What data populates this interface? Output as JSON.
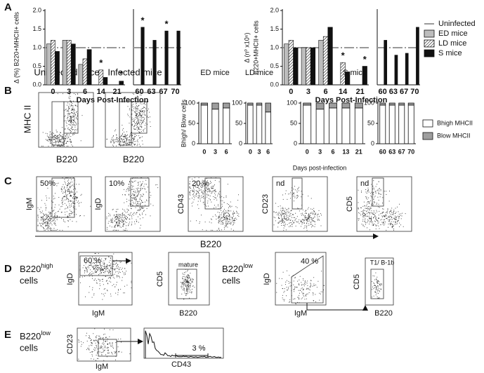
{
  "panel_labels": [
    "A",
    "B",
    "C",
    "D",
    "E"
  ],
  "chart_data": [
    {
      "type": "bar",
      "ylabel": "Δ (%) B220+MHCII+ cells",
      "xlabel": "Days Post-Infection",
      "category_groups": [
        [
          "0",
          "3",
          "6",
          "14",
          "21"
        ],
        [
          "60",
          "63",
          "67",
          "70"
        ]
      ],
      "ylim": [
        0,
        2
      ],
      "yticks": [
        {
          "value": 0,
          "label": "0.0"
        },
        {
          "value": 0.5,
          "label": "0.5"
        },
        {
          "value": 1,
          "label": "1.0"
        },
        {
          "value": 1.5,
          "label": "1.5"
        },
        {
          "value": 2,
          "label": "2.0"
        }
      ],
      "significance_mark": "*",
      "reference_lines": [
        {
          "value": 1,
          "color": "#999999"
        }
      ],
      "series": [
        {
          "color": "#bdbdbd",
          "values": [
            1.1,
            1.2,
            0.55,
            null,
            null,
            null,
            null,
            null,
            null
          ]
        },
        {
          "color": "#ffffff",
          "pattern": "hatch",
          "values": [
            1.2,
            1.2,
            0.7,
            0.4,
            null,
            null,
            null,
            null,
            null
          ],
          "significant": [
            false,
            false,
            false,
            true,
            false,
            false,
            false,
            false,
            false
          ]
        },
        {
          "color": "#111111",
          "values": [
            0.9,
            1.1,
            0.95,
            0.2,
            0.1,
            1.55,
            1.2,
            1.45,
            1.45
          ],
          "significant": [
            false,
            false,
            false,
            false,
            true,
            true,
            false,
            true,
            false
          ]
        }
      ]
    },
    {
      "type": "bar",
      "ylabel": [
        "Δ (nº x10⁶)",
        "B220+MHCII+ cells"
      ],
      "xlabel": "Days Post-Infection",
      "category_groups": [
        [
          "0",
          "3",
          "6",
          "14",
          "21"
        ],
        [
          "60",
          "63",
          "67",
          "70"
        ]
      ],
      "ylim": [
        0,
        2
      ],
      "yticks": [
        {
          "value": 0,
          "label": "0.0"
        },
        {
          "value": 0.5,
          "label": "0.5"
        },
        {
          "value": 1,
          "label": "1.0"
        },
        {
          "value": 1.5,
          "label": "1.5"
        },
        {
          "value": 2,
          "label": "2.0"
        }
      ],
      "significance_mark": "*",
      "legend": "right",
      "reference_lines": [
        {
          "name": "Uninfected",
          "value": 1,
          "color": "#999999"
        }
      ],
      "series": [
        {
          "name": "ED mice",
          "color": "#bdbdbd",
          "values": [
            1.1,
            1.0,
            1.2,
            null,
            null,
            null,
            null,
            null,
            null
          ]
        },
        {
          "name": "LD mice",
          "color": "#ffffff",
          "pattern": "hatch",
          "values": [
            1.2,
            1.0,
            1.3,
            0.6,
            null,
            null,
            null,
            null,
            null
          ],
          "significant": [
            false,
            false,
            false,
            true,
            false,
            false,
            false,
            false,
            false
          ]
        },
        {
          "name": "S mice",
          "color": "#111111",
          "values": [
            1.0,
            1.0,
            1.55,
            0.35,
            0.5,
            1.2,
            0.8,
            0.85,
            1.55
          ],
          "significant": [
            false,
            false,
            false,
            false,
            true,
            false,
            false,
            false,
            false
          ]
        }
      ]
    },
    {
      "type": "stacked_bar",
      "title": "ED mice",
      "ylabel": "Bhigh/ Blow cells",
      "category_groups": [
        [
          "0",
          "3",
          "6"
        ]
      ],
      "ylim": [
        0,
        100
      ],
      "yticks": [
        0,
        50,
        100
      ],
      "series": [
        {
          "color": "#ffffff",
          "values": [
            95,
            85,
            88
          ]
        },
        {
          "color": "#9e9e9e",
          "values": [
            5,
            15,
            12
          ]
        }
      ]
    },
    {
      "type": "stacked_bar",
      "title": "LD mice",
      "category_groups": [
        [
          "0",
          "3",
          "6"
        ]
      ],
      "ylim": [
        0,
        100
      ],
      "yticks": [
        0,
        50,
        100
      ],
      "series": [
        {
          "color": "#ffffff",
          "values": [
            95,
            95,
            78
          ]
        },
        {
          "color": "#9e9e9e",
          "values": [
            5,
            5,
            22
          ]
        }
      ]
    },
    {
      "type": "stacked_bar",
      "title": "S mice",
      "category_groups": [
        [
          "0",
          "3",
          "6",
          "13",
          "21"
        ]
      ],
      "ylim": [
        0,
        100
      ],
      "yticks": [
        0,
        50,
        100
      ],
      "series": [
        {
          "color": "#ffffff",
          "values": [
            95,
            85,
            88,
            88,
            88
          ]
        },
        {
          "color": "#9e9e9e",
          "values": [
            5,
            15,
            12,
            12,
            12
          ]
        }
      ]
    },
    {
      "type": "stacked_bar",
      "legend": "right",
      "category_groups": [
        [
          "60",
          "63",
          "67",
          "70"
        ]
      ],
      "ylim": [
        0,
        100
      ],
      "yticks": [
        0,
        50,
        100
      ],
      "series": [
        {
          "name": "Bhigh MHCII",
          "color": "#ffffff",
          "values": [
            95,
            95,
            95,
            95
          ]
        },
        {
          "name": "Blow MHCII",
          "color": "#9e9e9e",
          "values": [
            5,
            5,
            5,
            5
          ]
        }
      ]
    }
  ],
  "panel_b": {
    "titles": [
      "Uninfected mice",
      "Infected mice"
    ],
    "y_label": "MHC II",
    "x_labels": [
      "B220",
      "B220"
    ],
    "days_label": "Days post-infection"
  },
  "panel_c": {
    "y_labels": [
      "IgM",
      "IgD",
      "CD43",
      "CD23",
      "CD5"
    ],
    "gate_labels": [
      "50%",
      "10%",
      "20 %",
      "nd",
      "nd"
    ],
    "x_label": "B220"
  },
  "panel_d": {
    "high": {
      "name": "B220",
      "sup": "high",
      "suffix": "cells",
      "plots": [
        {
          "y": "IgD",
          "x": "IgM",
          "gate": "60 %"
        },
        {
          "y": "CD5",
          "x": "B220",
          "gate": "mature"
        }
      ]
    },
    "low": {
      "name": "B220",
      "sup": "low",
      "suffix": "cells",
      "plots": [
        {
          "y": "IgD",
          "x": "IgM",
          "gate": "40 %"
        },
        {
          "y": "CD5",
          "x": "B220",
          "gate": "T1/ B-1b"
        }
      ]
    }
  },
  "panel_e": {
    "name": "B220",
    "sup": "low",
    "suffix": "cells",
    "plot": {
      "y": "CD23",
      "x": "IgM"
    },
    "histogram": {
      "x": "CD43",
      "gate": "3 %"
    }
  }
}
